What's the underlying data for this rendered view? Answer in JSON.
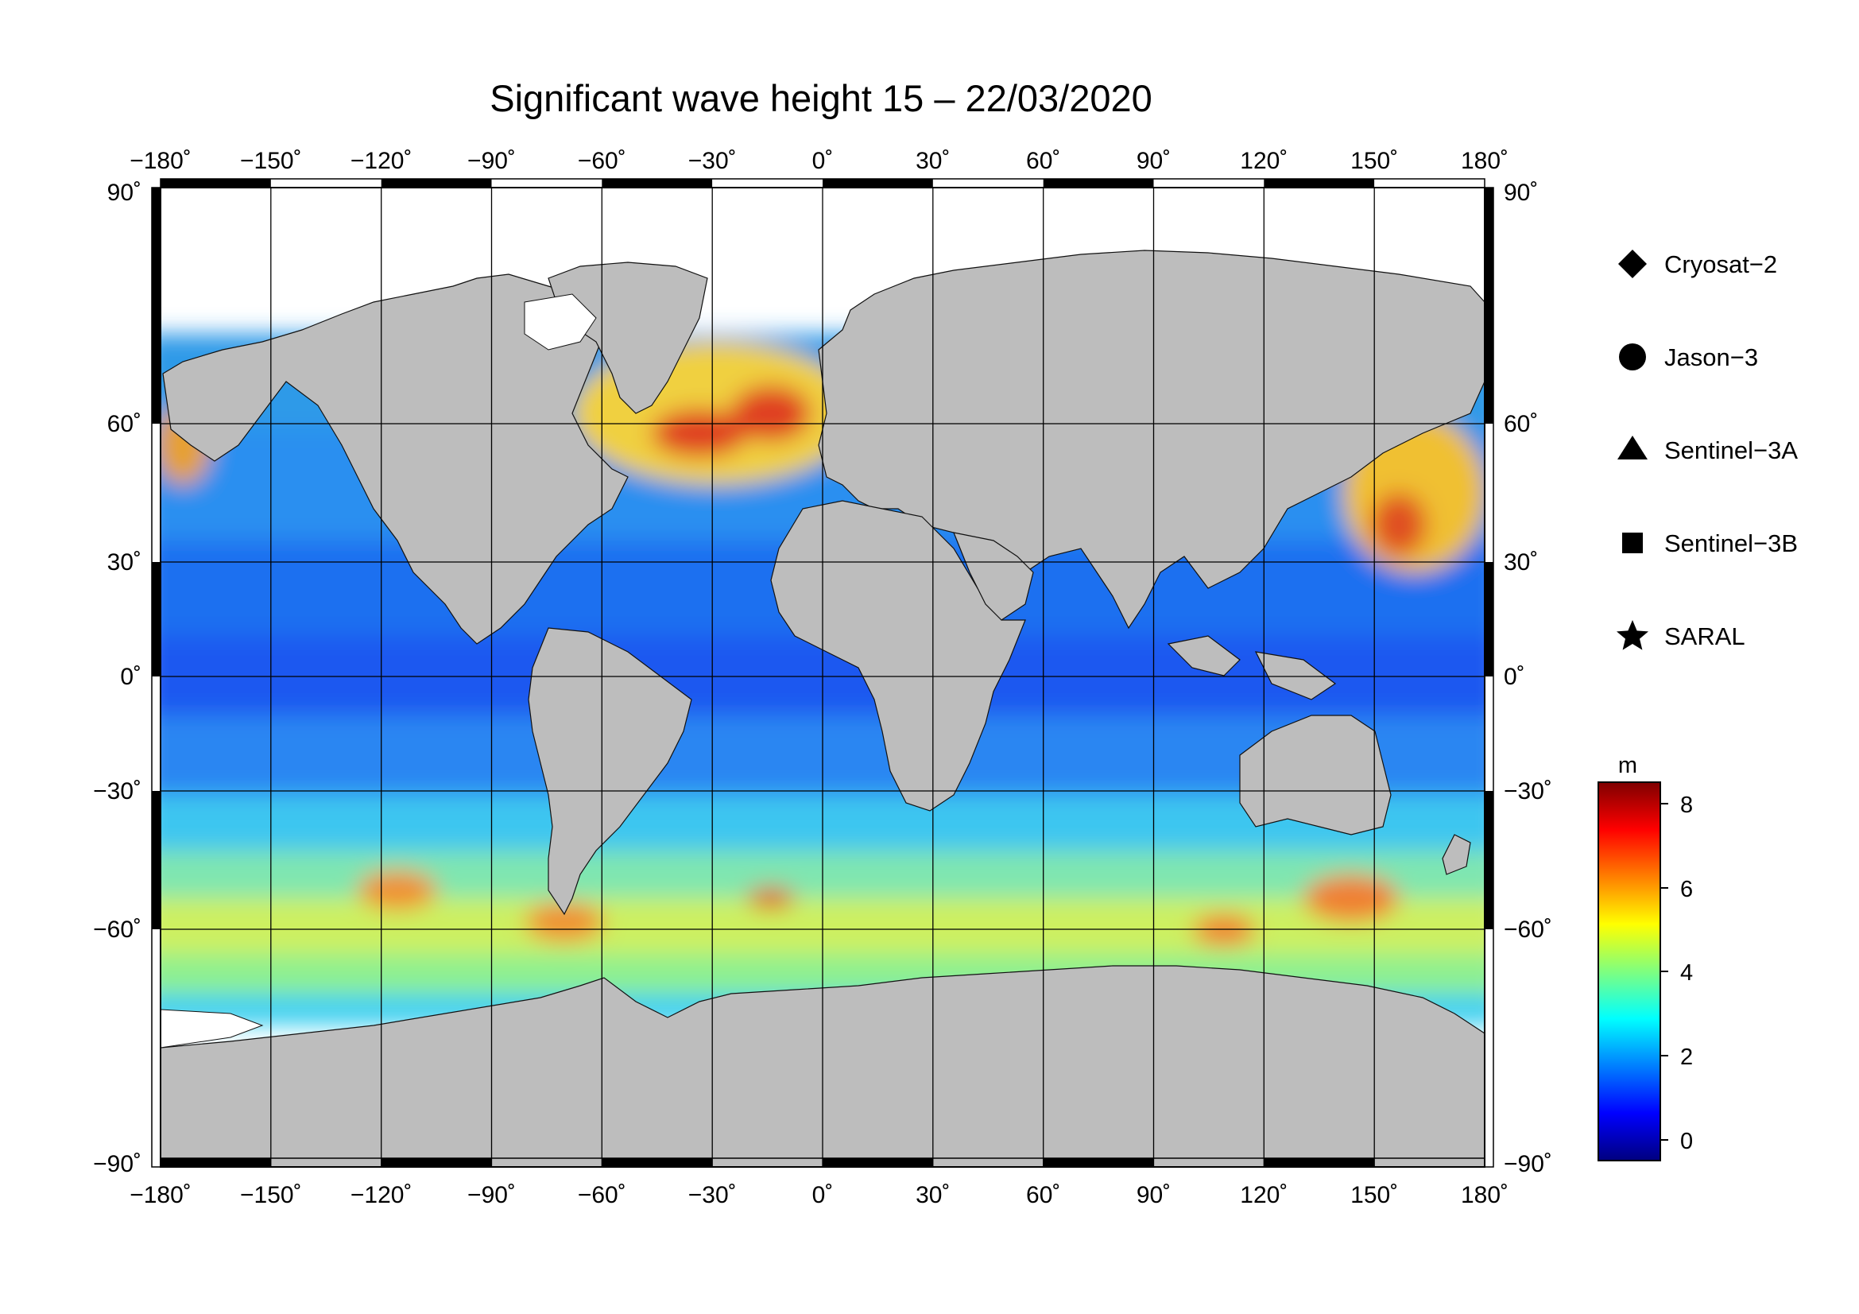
{
  "title": "Significant wave height 15 – 22/03/2020",
  "lon_ticks": [
    "−180˚",
    "−150˚",
    "−120˚",
    "−90˚",
    "−60˚",
    "−30˚",
    "0˚",
    "30˚",
    "60˚",
    "90˚",
    "120˚",
    "150˚",
    "180˚"
  ],
  "lat_ticks": [
    "90˚",
    "60˚",
    "30˚",
    "0˚",
    "−30˚",
    "−60˚",
    "−90˚"
  ],
  "legend": [
    {
      "label": "Cryosat−2",
      "symbol": "diamond"
    },
    {
      "label": "Jason−3",
      "symbol": "circle"
    },
    {
      "label": "Sentinel−3A",
      "symbol": "triangle"
    },
    {
      "label": "Sentinel−3B",
      "symbol": "square"
    },
    {
      "label": "SARAL",
      "symbol": "star"
    }
  ],
  "colorbar": {
    "unit": "m",
    "ticks": [
      "8",
      "6",
      "4",
      "2",
      "0"
    ],
    "range": [
      -0.5,
      8.5
    ],
    "colors": [
      "#00007f",
      "#0000ff",
      "#007fff",
      "#00ffff",
      "#7fff7f",
      "#ffff00",
      "#ff7f00",
      "#ff0000",
      "#7f0000"
    ]
  },
  "map": {
    "projection": "equirectangular",
    "lon_range": [
      -180,
      180
    ],
    "lat_range": [
      -90,
      90
    ],
    "graticule_step_deg": 30,
    "land_color": "#bdbdbd",
    "ice_color": "#ffffff"
  }
}
